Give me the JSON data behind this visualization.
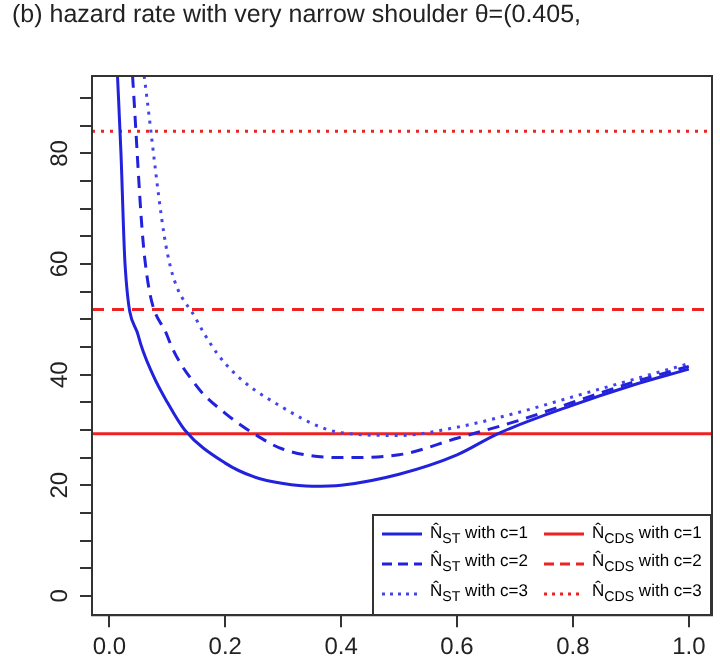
{
  "chart_data": {
    "type": "line",
    "title": "(b) hazard rate with very narrow shoulder θ=(0.405,",
    "xlim": [
      -0.03,
      1.04
    ],
    "ylim": [
      -3.5,
      94
    ],
    "xticks": [
      {
        "value": 0,
        "label": "0.0"
      },
      {
        "value": 0.2,
        "label": "0.2"
      },
      {
        "value": 0.4,
        "label": "0.4"
      },
      {
        "value": 0.6,
        "label": "0.6"
      },
      {
        "value": 0.8,
        "label": "0.8"
      },
      {
        "value": 1,
        "label": "1.0"
      }
    ],
    "yticks": [
      0,
      {
        "value": 5,
        "label": null
      },
      {
        "value": 10,
        "label": null
      },
      {
        "value": 15,
        "label": null
      },
      20,
      {
        "value": 25,
        "label": null
      },
      {
        "value": 30,
        "label": null
      },
      {
        "value": 35,
        "label": null
      },
      40,
      {
        "value": 45,
        "label": null
      },
      {
        "value": 50,
        "label": null
      },
      {
        "value": 55,
        "label": null
      },
      60,
      {
        "value": 65,
        "label": null
      },
      {
        "value": 70,
        "label": null
      },
      {
        "value": 75,
        "label": null
      },
      80,
      {
        "value": 85,
        "label": null
      },
      {
        "value": 90,
        "label": null
      }
    ],
    "grid": false,
    "legend": "bottom right",
    "marker": "none",
    "series": [
      {
        "name": "N̂$_{ST}$ with c=1",
        "color": "#2222dd",
        "line_style": "solid",
        "x": [
          0.014,
          0.02,
          0.027,
          0.05,
          0.075,
          0.1,
          0.13,
          0.2,
          0.25,
          0.3,
          0.35,
          0.4,
          0.5,
          0.6,
          0.67,
          0.8,
          0.9,
          1.0
        ],
        "values": [
          94,
          80,
          60,
          47,
          40,
          35,
          30,
          24,
          21.5,
          20.3,
          19.8,
          20,
          22,
          25.5,
          29.3,
          34.5,
          38,
          41
        ]
      },
      {
        "name": "N̂$_{ST}$ with c=2",
        "color": "#2222dd",
        "line_style": "dashed",
        "x": [
          0.04,
          0.06,
          0.1,
          0.15,
          0.2,
          0.25,
          0.3,
          0.4,
          0.5,
          0.6,
          0.7,
          0.8,
          0.9,
          1.0
        ],
        "values": [
          94,
          62,
          47,
          38,
          33,
          29.3,
          26.5,
          25,
          25.5,
          28.5,
          31.5,
          35,
          38.5,
          41.5
        ]
      },
      {
        "name": "N̂$_{ST}$ with c=3",
        "color": "#4444ee",
        "line_style": "dotted",
        "x": [
          0.06,
          0.1,
          0.15,
          0.2,
          0.3,
          0.4,
          0.5,
          0.6,
          0.7,
          0.8,
          0.9,
          1.0
        ],
        "values": [
          94,
          62,
          50,
          42,
          34,
          29.5,
          29,
          30.5,
          33,
          36,
          39,
          42
        ]
      },
      {
        "name": "N̂$_{CDS}$ with c=1",
        "color": "#ee2222",
        "line_style": "solid",
        "x": [
          -0.03,
          1.04
        ],
        "values": [
          29.3,
          29.3
        ]
      },
      {
        "name": "N̂$_{CDS}$ with c=2",
        "color": "#ee2222",
        "line_style": "dashed",
        "x": [
          -0.03,
          1.04
        ],
        "values": [
          51.8,
          51.8
        ]
      },
      {
        "name": "N̂$_{CDS}$ with c=3",
        "color": "#ee2222",
        "line_style": "dotted",
        "x": [
          -0.03,
          1.04
        ],
        "values": [
          84,
          84
        ]
      }
    ]
  }
}
